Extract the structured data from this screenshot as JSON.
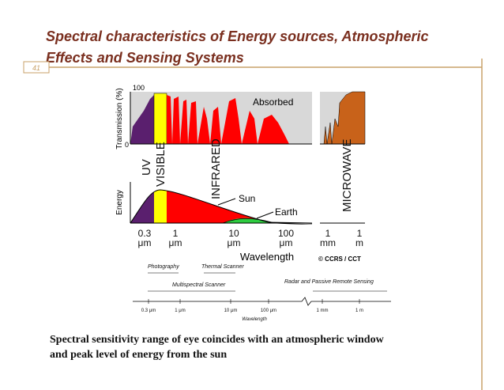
{
  "header": {
    "title": [
      "Spectral characteristics of Energy sources, Atmospheric",
      "Effects and Sensing Systems"
    ],
    "slide_number": "41"
  },
  "figure": {
    "transmission": {
      "axis_label": "Transmission (%)",
      "tick_top": "100",
      "tick_bottom": "0",
      "absorbed": "Absorbed"
    },
    "regions": [
      "UV",
      "VISIBLE",
      "INFRARED",
      "MICROWAVE"
    ],
    "energy": {
      "axis_label": "Energy",
      "sun": "Sun",
      "earth": "Earth"
    },
    "wavelength_ticks": [
      [
        "0.3",
        "μm"
      ],
      [
        "1",
        "μm"
      ],
      [
        "10",
        "μm"
      ],
      [
        "100",
        "μm"
      ],
      [
        "1",
        "mm"
      ],
      [
        "1",
        "m"
      ]
    ],
    "wavelength_label": "Wavelength",
    "credit": "© CCRS / CCT",
    "systems": [
      "Photography",
      "Thermal Scanner",
      "Multispectral Scanner",
      "Radar and Passive Remote Sensing"
    ],
    "scale_ticks": [
      "0.3 μm",
      "1 μm",
      "10 μm",
      "100 μm",
      "1 mm",
      "1 m"
    ],
    "scale_label": "Wavelength"
  },
  "caption": [
    "Spectral sensitivity range of eye coincides with an atmospheric window",
    "and peak level of energy from the sun"
  ]
}
